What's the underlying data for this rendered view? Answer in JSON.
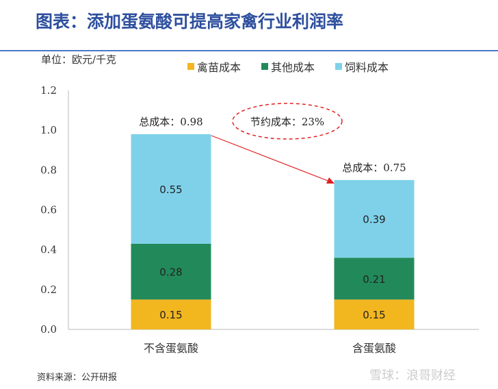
{
  "title": "图表：添加蛋氨酸可提高家禽行业利润率",
  "unit_label": "单位：欧元/千克",
  "source": "资料来源：公开研报",
  "watermark": "雪球：浪哥财经",
  "chart_data": {
    "type": "bar",
    "stacked": true,
    "categories": [
      "不含蛋氨酸",
      "含蛋氨酸"
    ],
    "series": [
      {
        "name": "禽苗成本",
        "color": "#f2b61f",
        "values": [
          0.15,
          0.15
        ]
      },
      {
        "name": "其他成本",
        "color": "#228a5a",
        "values": [
          0.28,
          0.21
        ]
      },
      {
        "name": "饲料成本",
        "color": "#7fd1ea",
        "values": [
          0.55,
          0.39
        ]
      }
    ],
    "totals": [
      "总成本：0.98",
      "总成本：0.75"
    ],
    "annotation": "节约成本：23%",
    "ylim": [
      0,
      1.2
    ],
    "yticks": [
      "0.0",
      "0.2",
      "0.4",
      "0.6",
      "0.8",
      "1.0",
      "1.2"
    ],
    "legend_position": "top"
  }
}
